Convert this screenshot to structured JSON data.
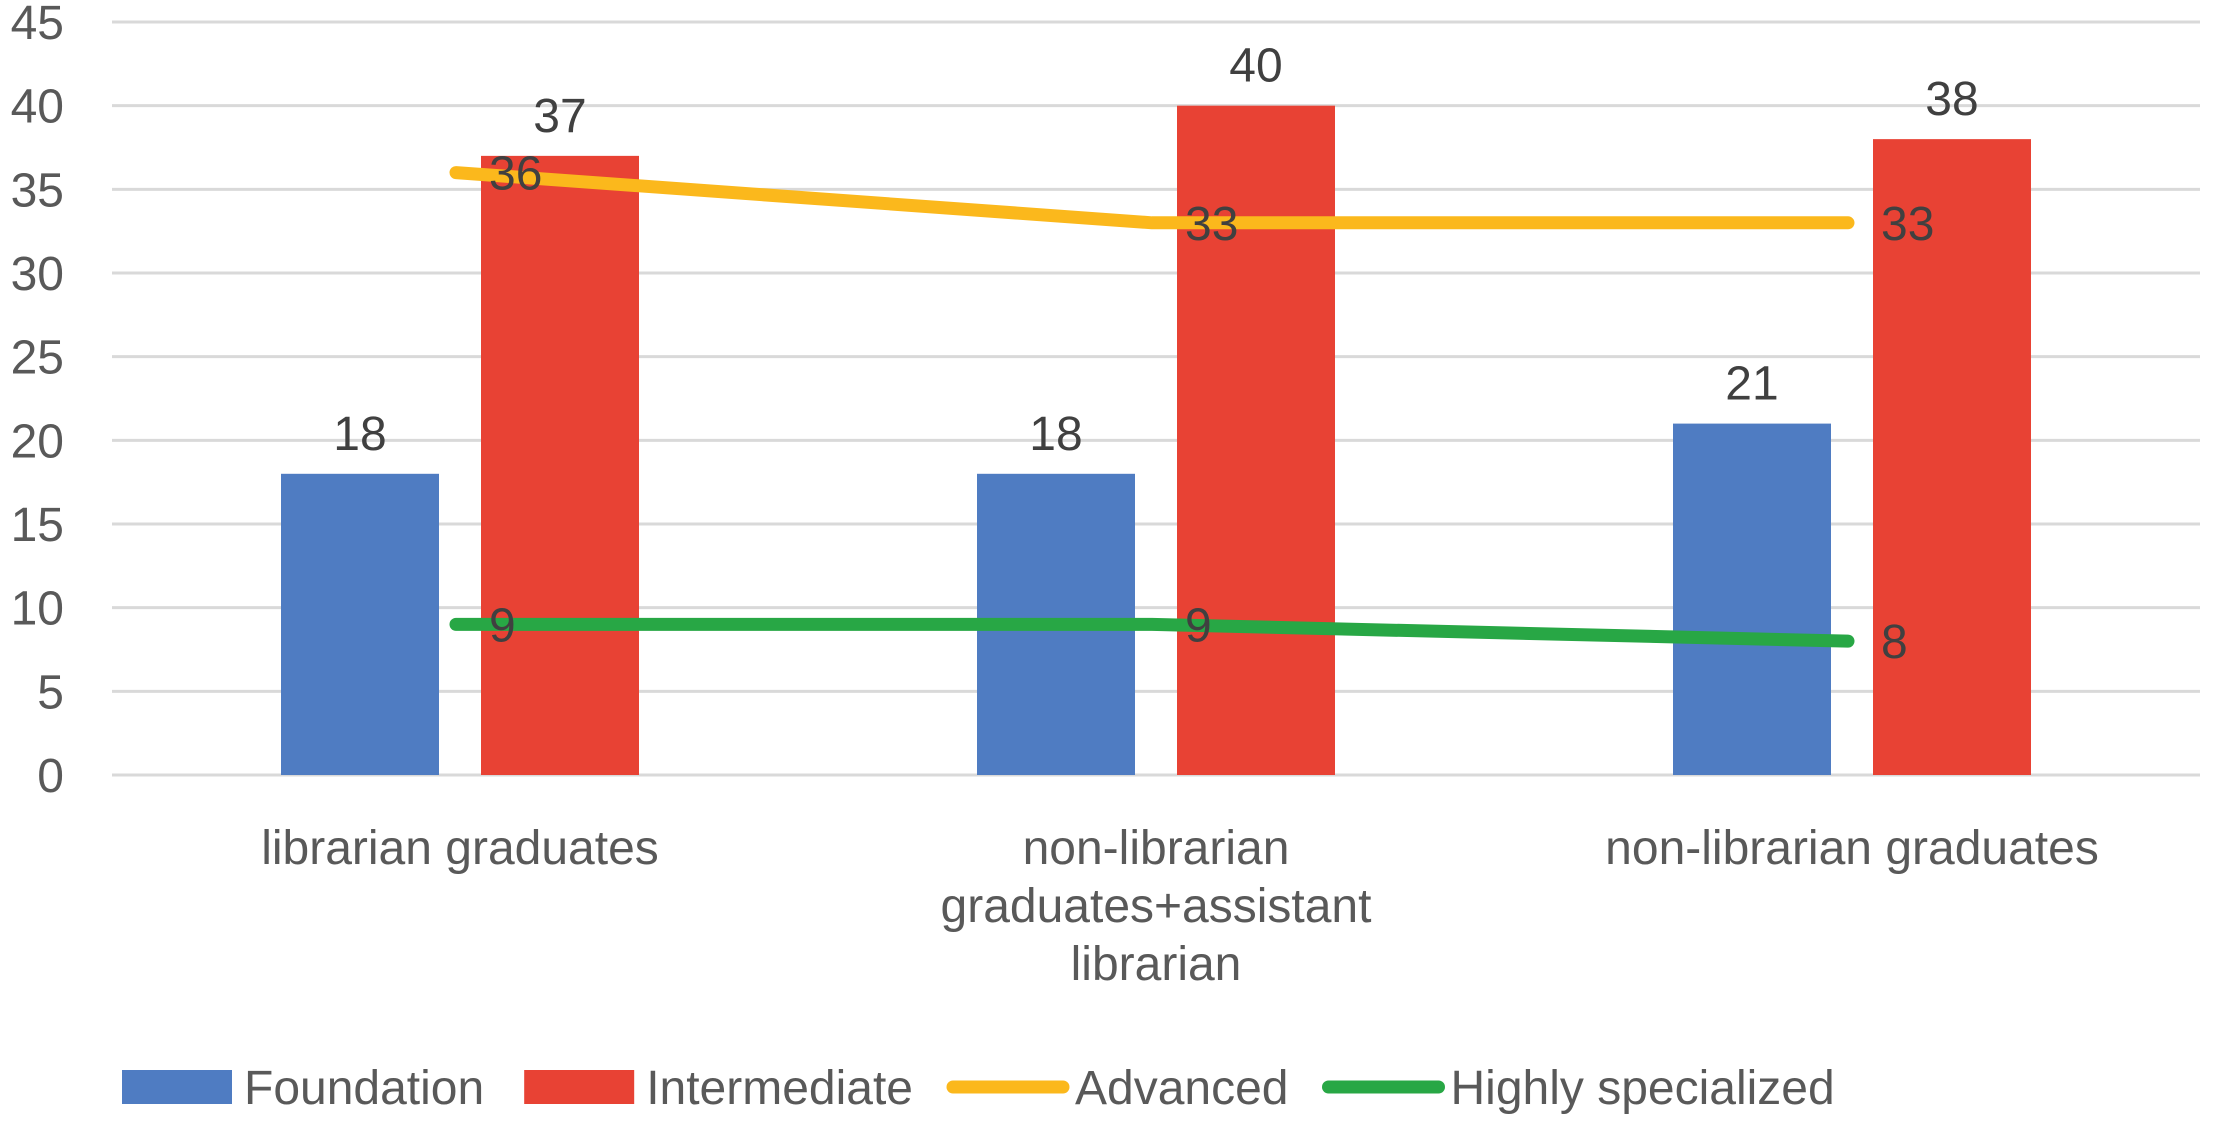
{
  "chart_data": {
    "type": "bar",
    "categories": [
      [
        "librarian graduates"
      ],
      [
        "non-librarian",
        "graduates+assistant",
        "librarian"
      ],
      [
        "non-librarian graduates"
      ]
    ],
    "series": [
      {
        "name": "Foundation",
        "kind": "bar",
        "color": "#4f7cc2",
        "values": [
          18,
          18,
          21
        ]
      },
      {
        "name": "Intermediate",
        "kind": "bar",
        "color": "#e84234",
        "values": [
          37,
          40,
          38
        ]
      },
      {
        "name": "Advanced",
        "kind": "line",
        "color": "#fbb81c",
        "values": [
          36,
          33,
          33
        ]
      },
      {
        "name": "Highly specialized",
        "kind": "line",
        "color": "#28a745",
        "values": [
          9,
          9,
          8
        ]
      }
    ],
    "ylim": [
      0,
      45
    ],
    "yticks": [
      0,
      5,
      10,
      15,
      20,
      25,
      30,
      35,
      40,
      45
    ],
    "grid": true,
    "legend_position": "bottom"
  }
}
